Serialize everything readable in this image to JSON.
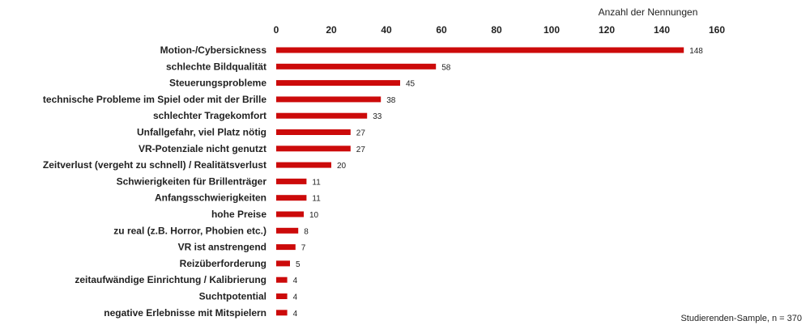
{
  "chart_data": {
    "type": "bar",
    "orientation": "horizontal",
    "xlabel": "Anzahl der Nennungen",
    "xlim": [
      0,
      160
    ],
    "xticks": [
      0,
      20,
      40,
      60,
      80,
      100,
      120,
      140,
      160
    ],
    "grid": false,
    "bar_color": "#cc0a0a",
    "categories": [
      "Motion-/Cybersickness",
      "schlechte Bildqualität",
      "Steuerungsprobleme",
      "technische Probleme im Spiel oder mit der Brille",
      "schlechter Tragekomfort",
      "Unfallgefahr, viel Platz nötig",
      "VR-Potenziale nicht genutzt",
      "Zeitverlust (vergeht zu schnell) / Realitätsverlust",
      "Schwierigkeiten für Brillenträger",
      "Anfangsschwierigkeiten",
      "hohe Preise",
      "zu real (z.B. Horror, Phobien etc.)",
      "VR ist anstrengend",
      "Reizüberforderung",
      "zeitaufwändige Einrichtung / Kalibrierung",
      "Suchtpotential",
      "negative Erlebnisse mit Mitspielern"
    ],
    "values": [
      148,
      58,
      45,
      38,
      33,
      27,
      27,
      20,
      11,
      11,
      10,
      8,
      7,
      5,
      4,
      4,
      4
    ]
  },
  "footnote": "Studierenden-Sample, n = 370"
}
